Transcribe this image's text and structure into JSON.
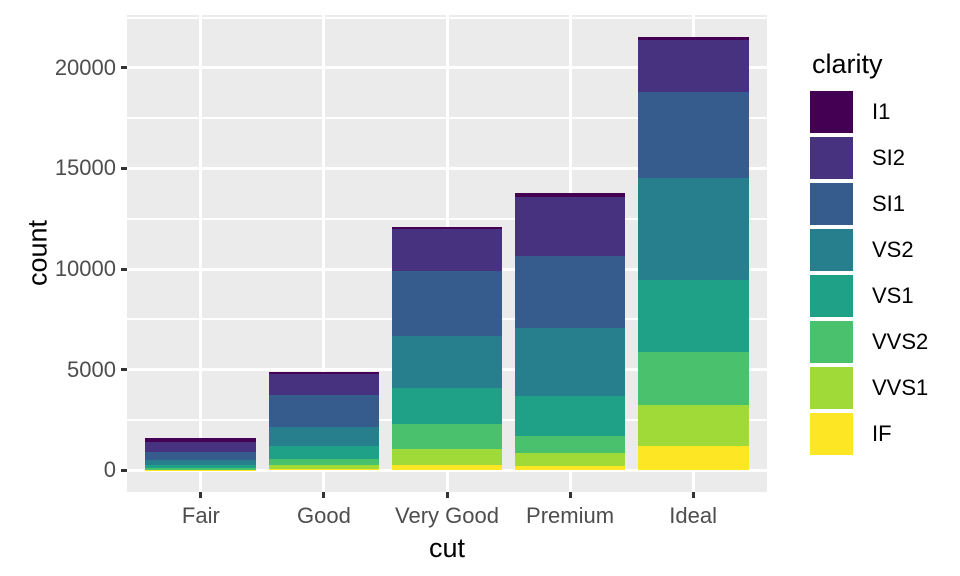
{
  "chart_data": {
    "type": "bar",
    "subtype": "stacked",
    "title": "",
    "xlabel": "cut",
    "ylabel": "count",
    "legend_title": "clarity",
    "legend_position": "right",
    "grid": true,
    "categories": [
      "Fair",
      "Good",
      "Very Good",
      "Premium",
      "Ideal"
    ],
    "series": [
      {
        "name": "I1",
        "color": "#440154",
        "values": [
          210,
          96,
          84,
          205,
          146
        ]
      },
      {
        "name": "SI2",
        "color": "#46327E",
        "values": [
          466,
          1081,
          2100,
          2949,
          2598
        ]
      },
      {
        "name": "SI1",
        "color": "#365C8D",
        "values": [
          408,
          1560,
          3240,
          3575,
          4282
        ]
      },
      {
        "name": "VS2",
        "color": "#277F8E",
        "values": [
          261,
          978,
          2591,
          3357,
          5071
        ]
      },
      {
        "name": "VS1",
        "color": "#1FA187",
        "values": [
          170,
          648,
          1775,
          1989,
          3589
        ]
      },
      {
        "name": "VVS2",
        "color": "#4AC16D",
        "values": [
          69,
          286,
          1235,
          870,
          2606
        ]
      },
      {
        "name": "VVS1",
        "color": "#A0DA39",
        "values": [
          17,
          186,
          789,
          616,
          2047
        ]
      },
      {
        "name": "IF",
        "color": "#FDE725",
        "values": [
          9,
          71,
          268,
          230,
          1212
        ]
      }
    ],
    "stack_order": "first-series-on-top",
    "category_totals": [
      1610,
      4906,
      12082,
      13791,
      21551
    ],
    "y_ticks": [
      0,
      5000,
      10000,
      15000,
      20000
    ],
    "y_minor_ticks": [
      2500,
      7500,
      12500,
      17500,
      22500
    ],
    "ylim": [
      -1077.55,
      22628.55
    ],
    "colors": {
      "panel_background": "#EBEBEB",
      "gridline": "#FFFFFF",
      "axis_text": "#4D4D4D",
      "axis_title": "#000000",
      "tick_mark": "#333333",
      "page_background": "#FFFFFF"
    }
  }
}
